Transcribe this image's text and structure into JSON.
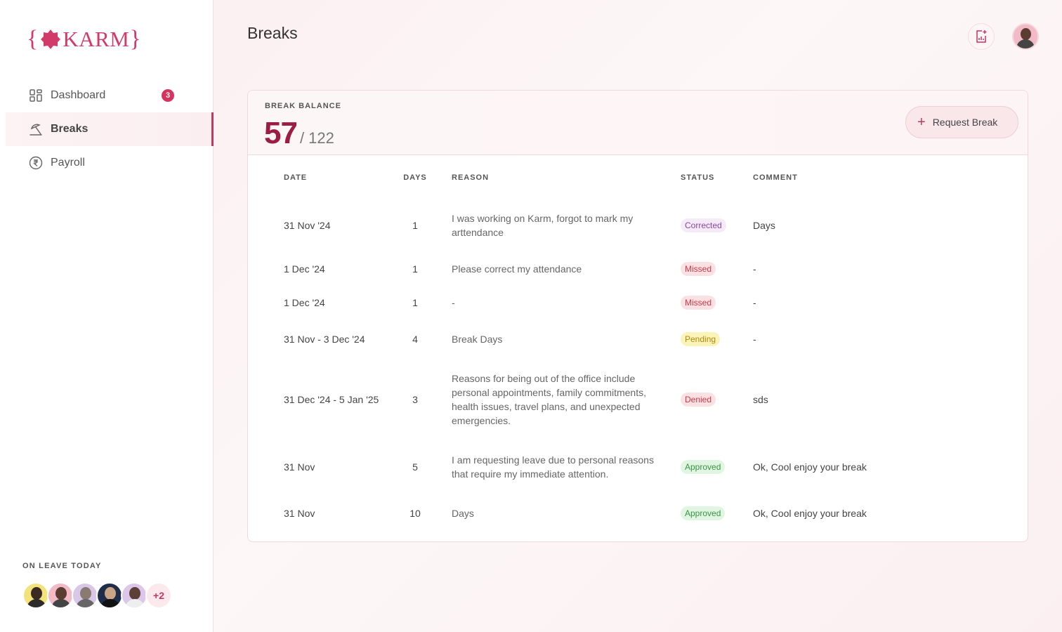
{
  "brand": {
    "name": "KARM",
    "brace_open": "{",
    "brace_close": "}",
    "color": "#d23a6a"
  },
  "sidebar": {
    "items": [
      {
        "label": "Dashboard",
        "icon": "grid-icon",
        "badge": "3"
      },
      {
        "label": "Breaks",
        "icon": "beach-umbrella-icon",
        "active": true
      },
      {
        "label": "Payroll",
        "icon": "rupee-icon"
      }
    ],
    "on_leave_title": "ON LEAVE TODAY",
    "on_leave_more": "+2"
  },
  "header": {
    "title": "Breaks"
  },
  "balance": {
    "label": "BREAK BALANCE",
    "value": "57",
    "total": "/ 122",
    "request_label": "Request Break"
  },
  "table": {
    "columns": [
      "DATE",
      "DAYS",
      "REASON",
      "STATUS",
      "COMMENT"
    ],
    "rows": [
      {
        "date": "31 Nov '24",
        "days": "1",
        "reason": "I was working on Karm, forgot to mark my arttendance",
        "status": "Corrected",
        "comment": "Days"
      },
      {
        "date": "1 Dec '24",
        "days": "1",
        "reason": "Please correct my attendance",
        "status": "Missed",
        "comment": "-"
      },
      {
        "date": "1 Dec '24",
        "days": "1",
        "reason": "-",
        "status": "Missed",
        "comment": "-"
      },
      {
        "date": "31 Nov - 3 Dec '24",
        "days": "4",
        "reason": "Break Days",
        "status": "Pending",
        "comment": "-"
      },
      {
        "date": "31 Dec '24 - 5 Jan '25",
        "days": "3",
        "reason": "Reasons for being out of the office include personal appointments, family commitments, health issues, travel plans, and unexpected emergencies.",
        "status": "Denied",
        "comment": "sds"
      },
      {
        "date": "31 Nov",
        "days": "5",
        "reason": "I am requesting leave due to personal reasons that require my immediate attention.",
        "status": "Approved",
        "comment": "Ok, Cool enjoy your break"
      },
      {
        "date": "31 Nov",
        "days": "10",
        "reason": "Days",
        "status": "Approved",
        "comment": "Ok, Cool enjoy your break"
      }
    ]
  }
}
